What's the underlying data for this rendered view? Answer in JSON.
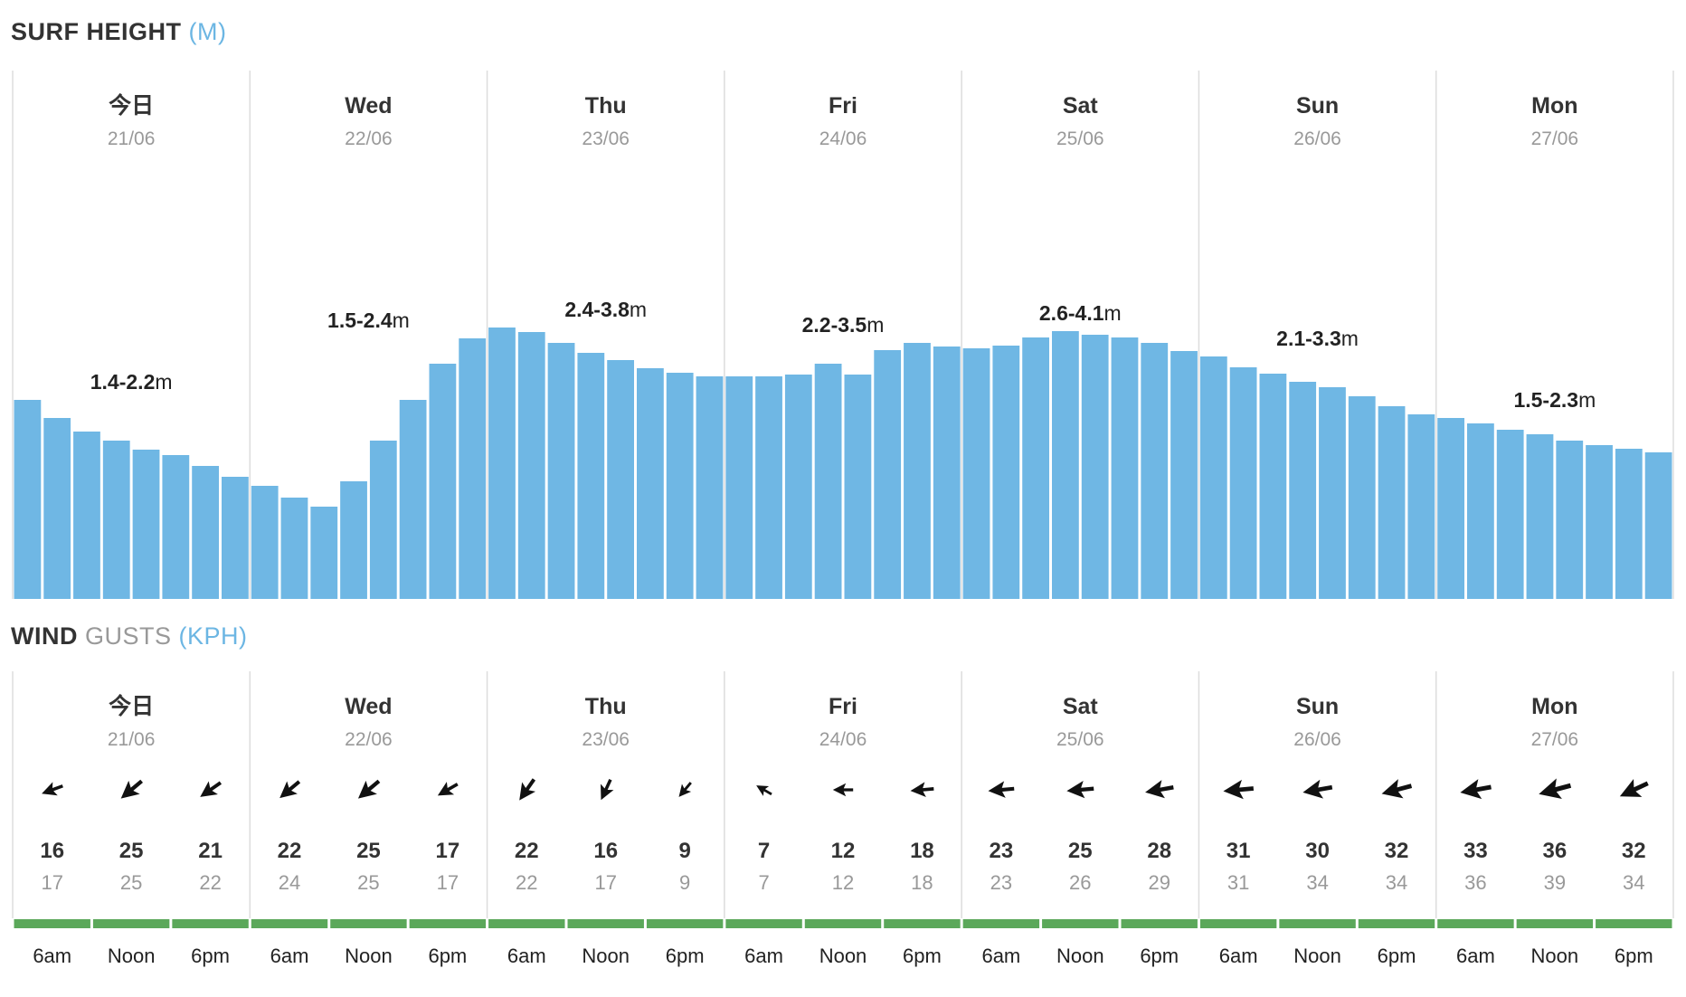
{
  "surf_title": {
    "label": "SURF HEIGHT",
    "unit": "(M)"
  },
  "wind_title": {
    "label": "WIND",
    "sub": "GUSTS",
    "unit": "(KPH)"
  },
  "days": [
    {
      "name": "今日",
      "date": "21/06"
    },
    {
      "name": "Wed",
      "date": "22/06"
    },
    {
      "name": "Thu",
      "date": "23/06"
    },
    {
      "name": "Fri",
      "date": "24/06"
    },
    {
      "name": "Sat",
      "date": "25/06"
    },
    {
      "name": "Sun",
      "date": "26/06"
    },
    {
      "name": "Mon",
      "date": "27/06"
    }
  ],
  "colors": {
    "bar": "#6fb7e4",
    "grass": "#5ba85a",
    "divider": "#dddddd",
    "arrow": "#111111",
    "unit_blue": "#6cb6e3"
  },
  "chart_data": [
    {
      "type": "bar",
      "title": "SURF HEIGHT (M)",
      "x": [
        0,
        1,
        2,
        3,
        4,
        5,
        6,
        7,
        8,
        9,
        10,
        11,
        12,
        13,
        14,
        15,
        16,
        17,
        18,
        19,
        20,
        21,
        22,
        23,
        24,
        25,
        26,
        27,
        28,
        29,
        30,
        31,
        32,
        33,
        34,
        35,
        36,
        37,
        38,
        39,
        40,
        41,
        42,
        43,
        44,
        45,
        46,
        47,
        48,
        49,
        50,
        51,
        52,
        53,
        54,
        55
      ],
      "values": [
        2.2,
        2.0,
        1.85,
        1.75,
        1.65,
        1.59,
        1.47,
        1.35,
        1.25,
        1.12,
        1.02,
        1.3,
        1.75,
        2.2,
        2.6,
        2.88,
        3.0,
        2.95,
        2.83,
        2.72,
        2.64,
        2.55,
        2.5,
        2.46,
        2.46,
        2.46,
        2.48,
        2.6,
        2.48,
        2.75,
        2.83,
        2.79,
        2.77,
        2.8,
        2.89,
        2.96,
        2.92,
        2.89,
        2.83,
        2.74,
        2.68,
        2.56,
        2.49,
        2.4,
        2.34,
        2.24,
        2.13,
        2.04,
        2.0,
        1.94,
        1.87,
        1.82,
        1.75,
        1.7,
        1.66,
        1.62
      ],
      "ranges": [
        {
          "day": "今日",
          "min": "1.4",
          "max": "2.2",
          "unit": "m",
          "label": "1.4-2.2"
        },
        {
          "day": "Wed",
          "min": "1.5",
          "max": "2.4",
          "unit": "m",
          "label": "1.5-2.4"
        },
        {
          "day": "Thu",
          "min": "2.4",
          "max": "3.8",
          "unit": "m",
          "label": "2.4-3.8"
        },
        {
          "day": "Fri",
          "min": "2.2",
          "max": "3.5",
          "unit": "m",
          "label": "2.2-3.5"
        },
        {
          "day": "Sat",
          "min": "2.6",
          "max": "4.1",
          "unit": "m",
          "label": "2.6-4.1"
        },
        {
          "day": "Sun",
          "min": "2.1",
          "max": "3.3",
          "unit": "m",
          "label": "2.1-3.3"
        },
        {
          "day": "Mon",
          "min": "1.5",
          "max": "2.3",
          "unit": "m",
          "label": "1.5-2.3"
        }
      ],
      "ylim": [
        0,
        3.0
      ]
    },
    {
      "type": "table",
      "title": "WIND GUSTS (KPH)",
      "times": [
        "6am",
        "Noon",
        "6pm"
      ],
      "speed": [
        16,
        25,
        21,
        22,
        25,
        17,
        22,
        16,
        9,
        7,
        12,
        18,
        23,
        25,
        28,
        31,
        30,
        32,
        33,
        36,
        32
      ],
      "gusts": [
        17,
        25,
        22,
        24,
        25,
        17,
        22,
        17,
        9,
        7,
        12,
        18,
        23,
        26,
        29,
        31,
        34,
        34,
        36,
        39,
        34
      ],
      "direction_deg": [
        70,
        50,
        55,
        50,
        50,
        60,
        35,
        25,
        40,
        120,
        90,
        85,
        85,
        85,
        80,
        85,
        80,
        75,
        80,
        75,
        65
      ]
    }
  ]
}
